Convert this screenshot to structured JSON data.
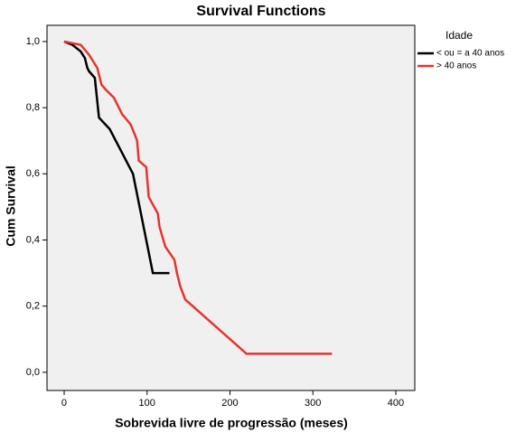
{
  "chart_data": {
    "type": "line",
    "title": "Survival Functions",
    "x_label": "Sobrevida livre de progressão (meses)",
    "y_label": "Cum Survival",
    "legend_title": "Idade",
    "legend_position": "right",
    "series": [
      {
        "name": "< ou = a 40 anos",
        "color": "#000000",
        "x": [
          0,
          10,
          20,
          25,
          28,
          30,
          37,
          42,
          55,
          83,
          107,
          127
        ],
        "values": [
          1.0,
          0.99,
          0.97,
          0.95,
          0.92,
          0.91,
          0.89,
          0.77,
          0.735,
          0.6,
          0.3,
          0.3
        ]
      },
      {
        "name": "> 40 anos",
        "color": "#e8332f",
        "x": [
          0,
          20,
          30,
          35,
          40,
          45,
          50,
          60,
          70,
          80,
          85,
          88,
          90,
          99,
          102,
          113,
          115,
          122,
          133,
          136,
          140,
          146,
          220,
          323
        ],
        "values": [
          1.0,
          0.99,
          0.96,
          0.94,
          0.92,
          0.87,
          0.855,
          0.83,
          0.78,
          0.75,
          0.72,
          0.7,
          0.64,
          0.62,
          0.53,
          0.48,
          0.44,
          0.38,
          0.34,
          0.3,
          0.26,
          0.22,
          0.056,
          0.056
        ]
      }
    ],
    "xlim": [
      -20.7,
      422.9
    ],
    "ylim": [
      -0.055,
      1.049
    ],
    "xticks": [
      0,
      100,
      200,
      300,
      400
    ],
    "yticks": [
      {
        "value": 0,
        "label": "0,0"
      },
      {
        "value": 0.2,
        "label": "0,2"
      },
      {
        "value": 0.4,
        "label": "0,4"
      },
      {
        "value": 0.6,
        "label": "0,6"
      },
      {
        "value": 0.8,
        "label": "0,8"
      },
      {
        "value": 1,
        "label": "1,0"
      }
    ]
  }
}
